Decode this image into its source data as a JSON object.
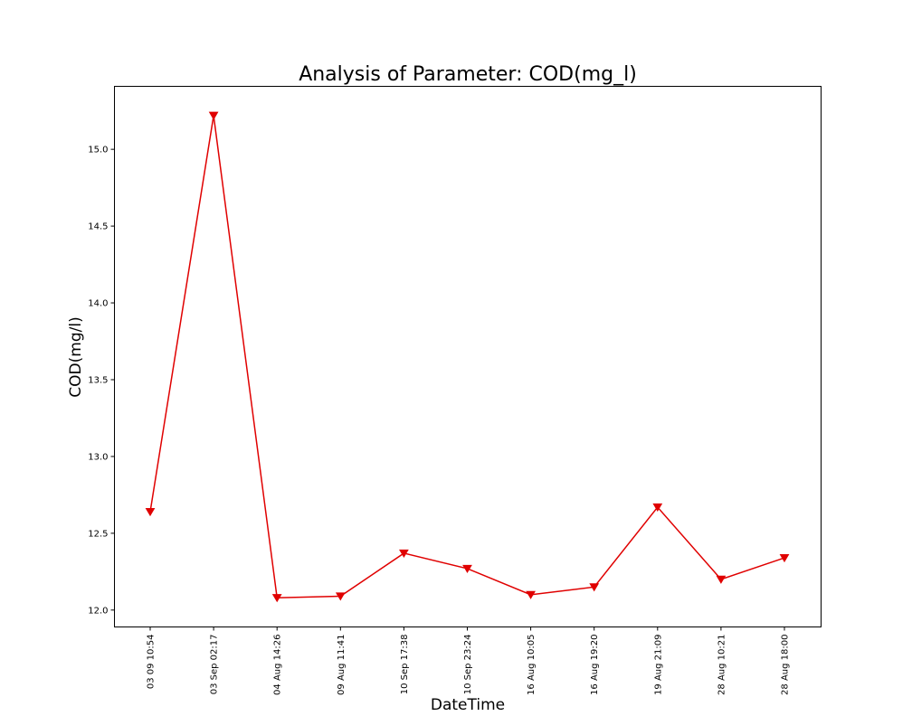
{
  "chart_data": {
    "type": "line",
    "title": "Analysis of Parameter: COD(mg_l)",
    "xlabel": "DateTime",
    "ylabel": "COD(mg/l)",
    "categories": [
      "03 09 10:54",
      "03 Sep 02:17",
      "04 Aug 14:26",
      "09 Aug 11:41",
      "10 Sep 17:38",
      "10 Sep 23:24",
      "16 Aug 10:05",
      "16 Aug 19:20",
      "19 Aug 21:09",
      "28 Aug 10:21",
      "28 Aug 18:00"
    ],
    "series": [
      {
        "color": "#e00000",
        "marker": "triangle-down",
        "values": [
          12.64,
          15.22,
          12.08,
          12.09,
          12.37,
          12.27,
          12.1,
          12.15,
          12.67,
          12.2,
          12.34
        ]
      }
    ],
    "ylim": [
      11.89,
      15.41
    ],
    "yticks": [
      "12.0",
      "12.5",
      "13.0",
      "13.5",
      "14.0",
      "14.5",
      "15.0"
    ],
    "grid": false,
    "legend": "none"
  }
}
